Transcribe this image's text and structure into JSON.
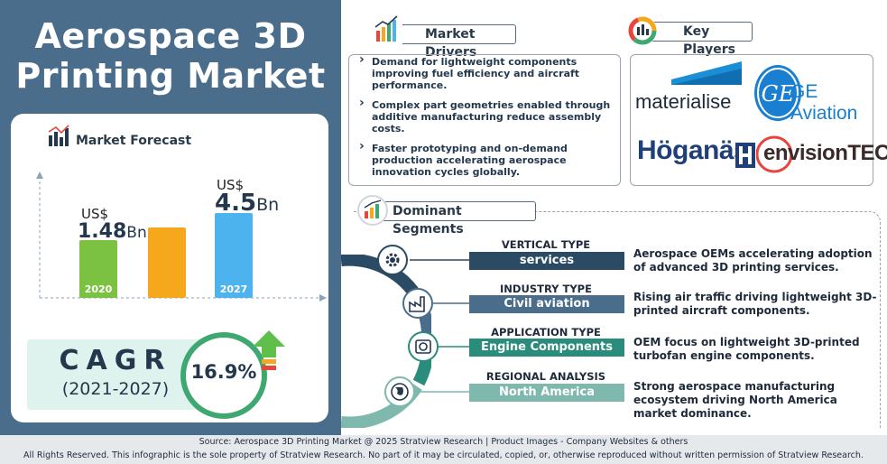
{
  "title": {
    "line1": "Aerospace 3D",
    "line2": "Printing Market"
  },
  "forecast": {
    "heading": "Market Forecast",
    "bars": [
      {
        "year": "2020",
        "currency": "US$",
        "value": "1.48",
        "unit": "Bn",
        "color": "#7cc242"
      },
      {
        "year": "",
        "currency": "",
        "value": "",
        "unit": "",
        "color": "#f5a81c"
      },
      {
        "year": "2027",
        "currency": "US$",
        "value": "4.5",
        "unit": "Bn",
        "color": "#4db3ee"
      }
    ]
  },
  "cagr": {
    "label": "CAGR",
    "years": "(2021-2027)",
    "value": "16.9%"
  },
  "drivers": {
    "heading": "Market Drivers",
    "items": [
      "Demand for lightweight components improving fuel efficiency and aircraft performance.",
      "Complex part geometries enabled through additive manufacturing reduce assembly costs.",
      "Faster prototyping and on-demand production accelerating aerospace innovation cycles globally."
    ]
  },
  "players": {
    "heading": "Key Players",
    "logos": {
      "materialise": "materialise",
      "ge": "GE Aviation",
      "hoganas": "Höganäs",
      "envisiontec": "envisionTEC"
    }
  },
  "segments": {
    "heading": "Dominant Segments",
    "items": [
      {
        "type": "VERTICAL TYPE",
        "label": "services",
        "desc": "Aerospace OEMs accelerating adoption of advanced 3D printing services.",
        "color": "#2b4a63",
        "icon": "gear-icon"
      },
      {
        "type": "INDUSTRY TYPE",
        "label": "Civil aviation",
        "desc": "Rising air traffic driving lightweight 3D-printed aircraft components.",
        "color": "#4a6d8c",
        "icon": "factory-icon"
      },
      {
        "type": "APPLICATION TYPE",
        "label": "Engine Components",
        "desc": "OEM focus on lightweight 3D-printed turbofan engine components.",
        "color": "#2a8c7a",
        "icon": "engine-icon"
      },
      {
        "type": "REGIONAL ANALYSIS",
        "label": "North America",
        "desc": "Strong aerospace manufacturing ecosystem driving North America market dominance.",
        "color": "#7fb8ad",
        "icon": "globe-icon"
      }
    ]
  },
  "footer": {
    "source": "Source:  Aerospace 3D Printing Market @ 2025 Stratview Research | Product Images  - Company Websites & others",
    "rights": "All Rights Reserved. This infographic is the sole property of Stratview Research. No part of it may be circulated, copied, or, otherwise reproduced without written permission of Stratview Research."
  }
}
